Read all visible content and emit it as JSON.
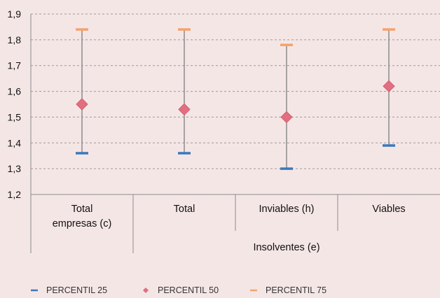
{
  "chart_data": {
    "type": "range",
    "title": "",
    "xlabel": "",
    "ylabel": "",
    "ylim": [
      1.2,
      1.9
    ],
    "yticks": [
      "1,2",
      "1,3",
      "1,4",
      "1,5",
      "1,6",
      "1,7",
      "1,8",
      "1,9"
    ],
    "grid": true,
    "legend_position": "bottom",
    "categories": [
      {
        "lines": [
          "Total",
          "empresas (c)"
        ]
      },
      {
        "lines": [
          "Total"
        ]
      },
      {
        "lines": [
          "Inviables (h)"
        ]
      },
      {
        "lines": [
          "Viables"
        ]
      }
    ],
    "group_label": "Insolventes (e)",
    "series": [
      {
        "name": "PERCENTIL 25",
        "values": [
          1.36,
          1.36,
          1.3,
          1.39
        ]
      },
      {
        "name": "PERCENTIL 50",
        "values": [
          1.55,
          1.53,
          1.5,
          1.62
        ]
      },
      {
        "name": "PERCENTIL 75",
        "values": [
          1.84,
          1.84,
          1.78,
          1.84
        ]
      }
    ],
    "colors": {
      "p25": "#3A78BE",
      "p50": "#E07080",
      "p75": "#F5A26A",
      "whisker": "#8C8C8C",
      "grid": "#9A9A9A",
      "axis": "#8C8C8C"
    }
  }
}
